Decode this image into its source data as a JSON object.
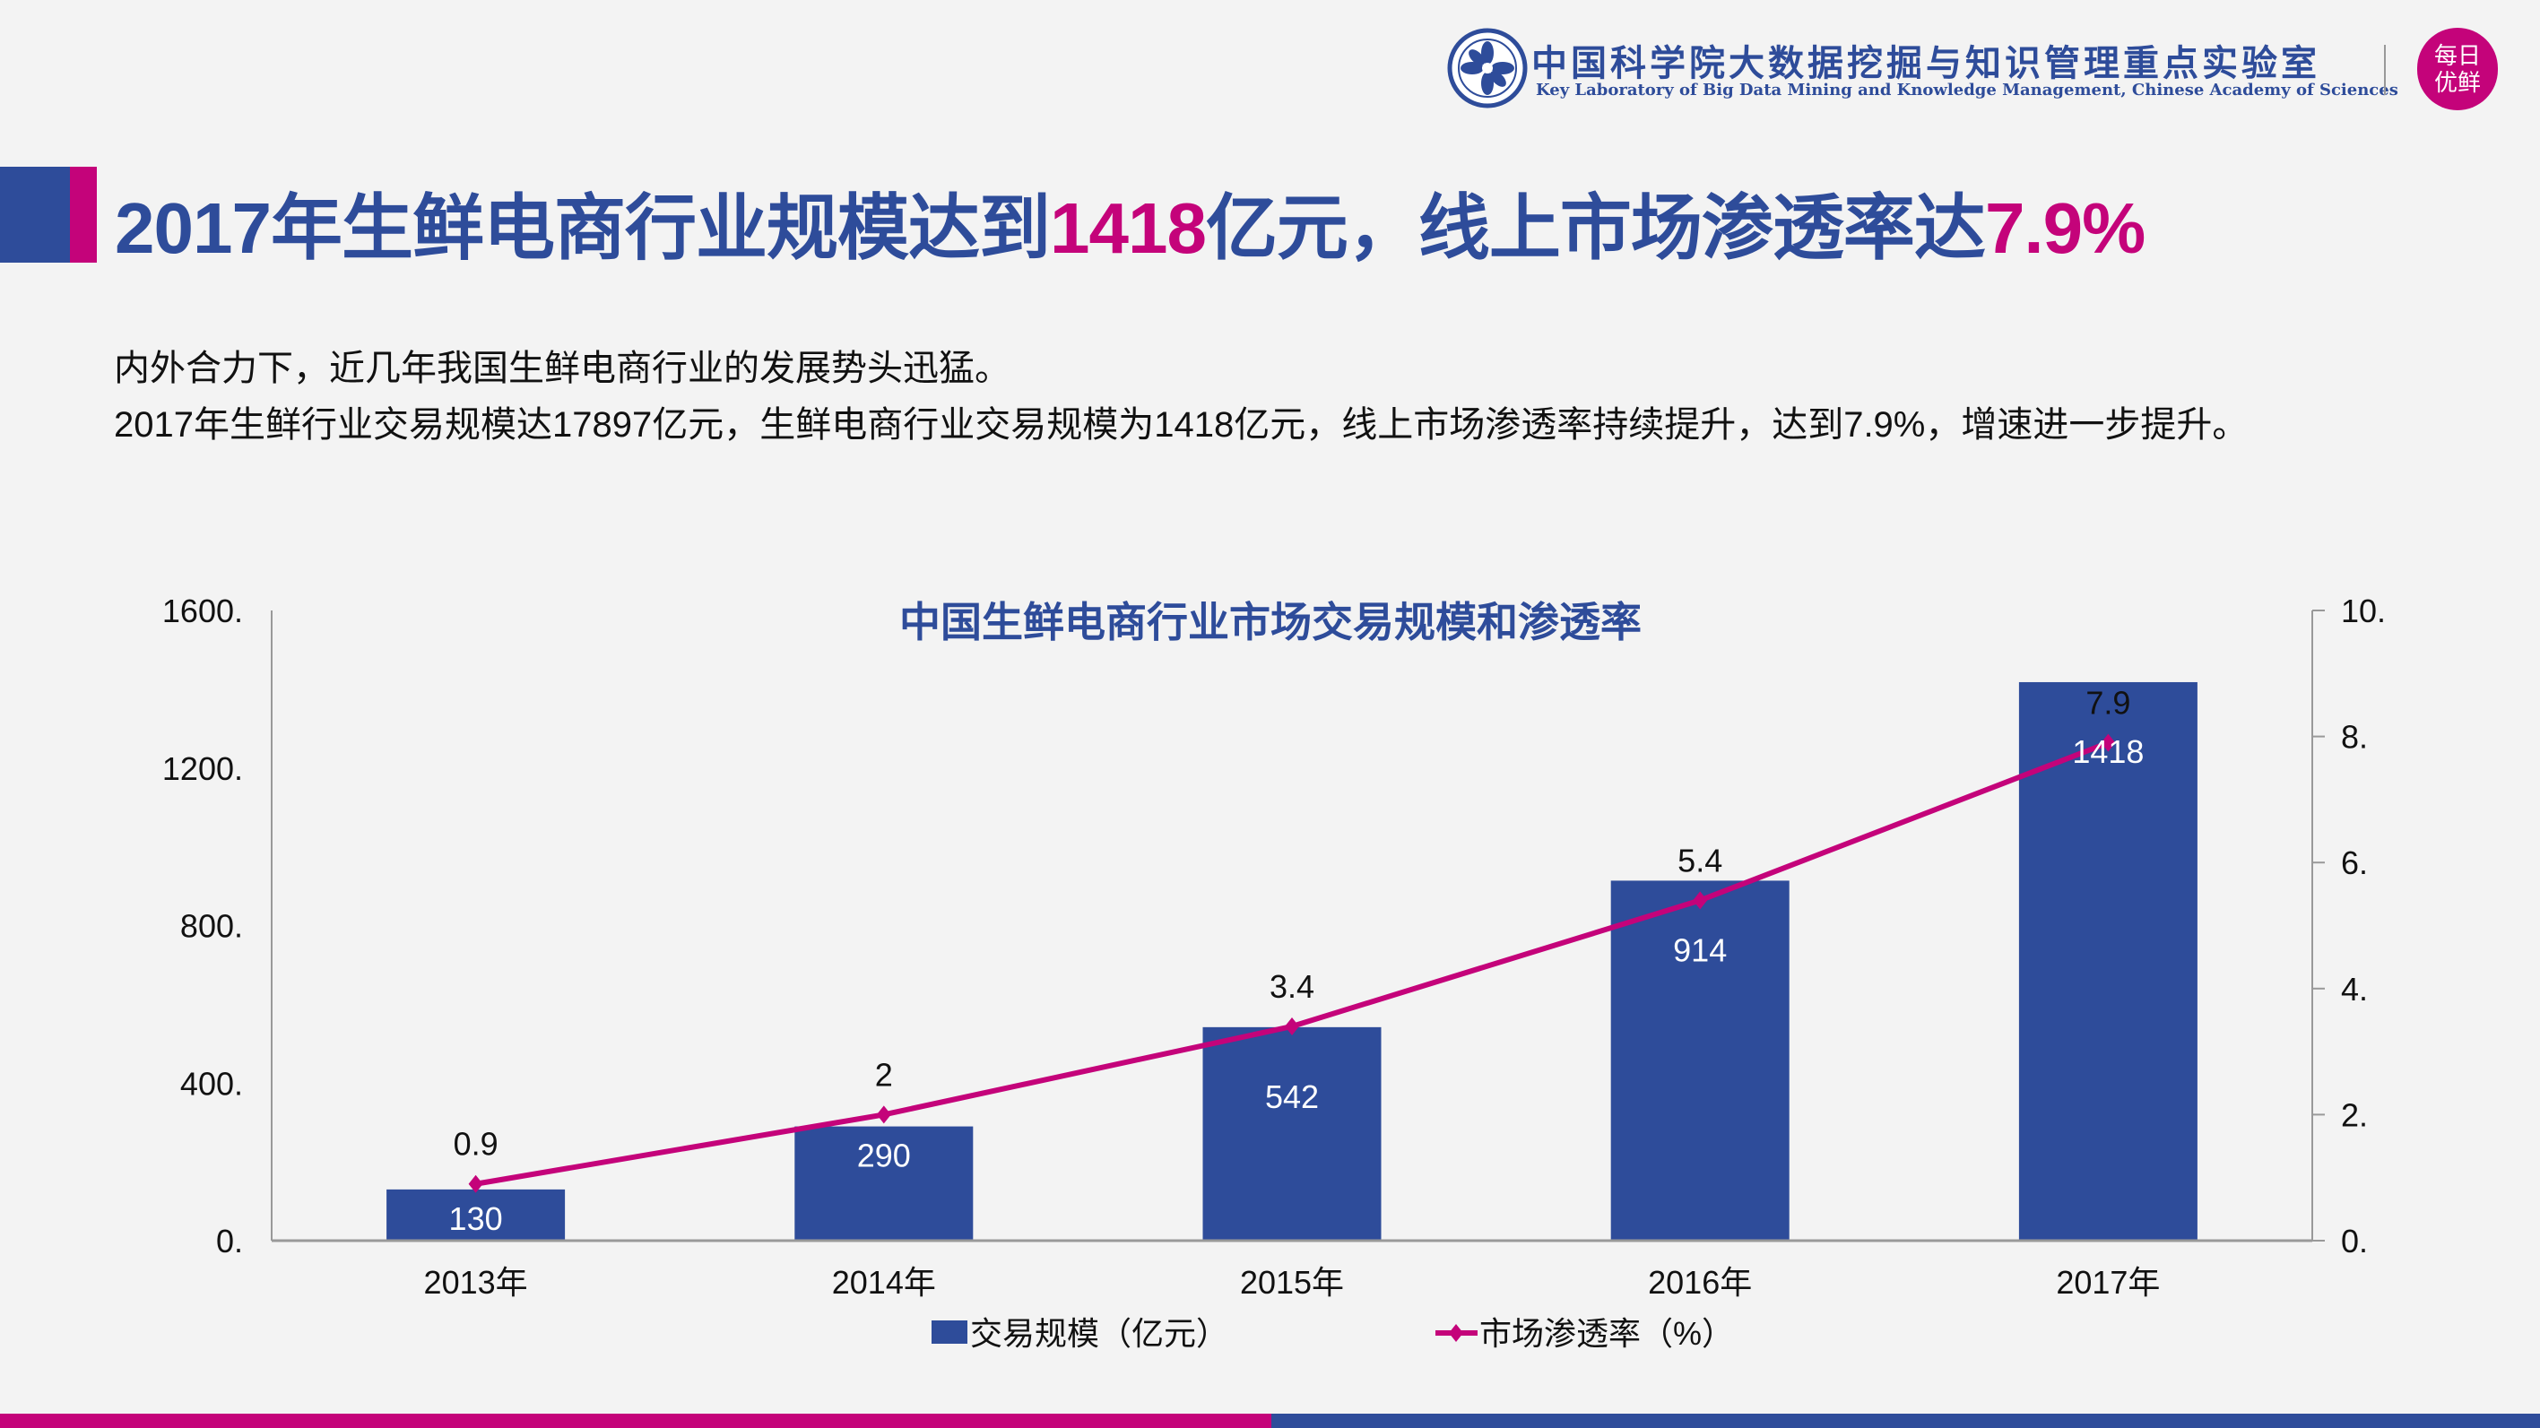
{
  "header": {
    "org_cn": "中国科学院大数据挖掘与知识管理重点实验室",
    "org_en": "Key Laboratory of Big Data Mining and Knowledge Management, Chinese Academy of Sciences",
    "partner_logo_text_1": "每日",
    "partner_logo_text_2": "优鲜",
    "emblem_icon": "cas-emblem-icon"
  },
  "title": {
    "part1": "2017年生鲜电商行业规模达到",
    "highlight1": "1418",
    "part2": "亿元，线上市场渗透率达",
    "highlight2": "7.9%"
  },
  "body": {
    "line1": "内外合力下，近几年我国生鲜电商行业的发展势头迅猛。",
    "line2": "2017年生鲜行业交易规模达17897亿元，生鲜电商行业交易规模为1418亿元，线上市场渗透率持续提升，达到7.9%，增速进一步提升。"
  },
  "colors": {
    "accent_blue": "#2e4c9a",
    "accent_pink": "#c4037a"
  },
  "chart_data": {
    "type": "bar+line",
    "title": "中国生鲜电商行业市场交易规模和渗透率",
    "categories": [
      "2013年",
      "2014年",
      "2015年",
      "2016年",
      "2017年"
    ],
    "series": [
      {
        "name": "交易规模（亿元）",
        "type": "bar",
        "axis": "left",
        "color": "#2e4c9a",
        "values": [
          130,
          290,
          542,
          914,
          1418
        ],
        "labels": [
          "130",
          "290",
          "542",
          "914",
          "1418"
        ]
      },
      {
        "name": "市场渗透率（%）",
        "type": "line",
        "axis": "right",
        "color": "#c4037a",
        "values": [
          0.9,
          2,
          3.4,
          5.4,
          7.9
        ],
        "labels": [
          "0.9",
          "2",
          "3.4",
          "5.4",
          "7.9"
        ]
      }
    ],
    "y_left": {
      "range": [
        0,
        1600
      ],
      "ticks": [
        0,
        400,
        800,
        1200,
        1600
      ],
      "tick_labels": [
        "0.",
        "400.",
        "800.",
        "1200.",
        "1600."
      ]
    },
    "y_right": {
      "range": [
        0,
        10
      ],
      "ticks": [
        0,
        2,
        4,
        6,
        8,
        10
      ],
      "tick_labels": [
        "0.",
        "2.",
        "4.",
        "6.",
        "8.",
        "10."
      ]
    },
    "grid": false,
    "legend": "bottom"
  }
}
